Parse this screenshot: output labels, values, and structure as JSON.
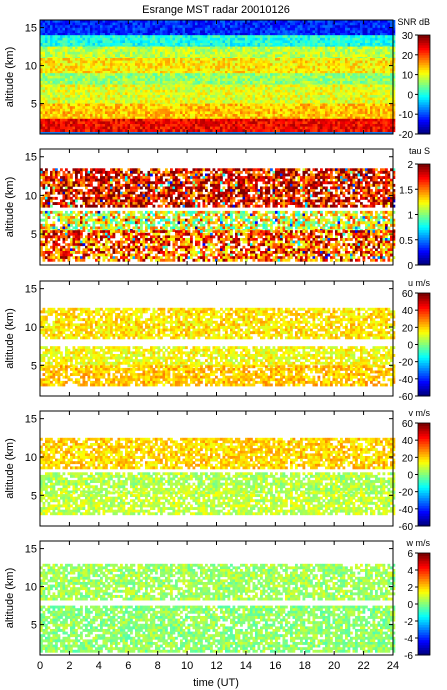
{
  "chart_data": {
    "type": "heatmap",
    "title": "Esrange MST radar 20010126",
    "xlabel": "time (UT)",
    "xlim": [
      0,
      24
    ],
    "x_ticks": [
      "0",
      "2",
      "4",
      "6",
      "8",
      "10",
      "12",
      "14",
      "16",
      "18",
      "20",
      "22",
      "24"
    ],
    "panels": [
      {
        "id": "snr",
        "ylabel": "altitude (km)",
        "ylim": [
          1,
          16
        ],
        "y_ticks": [
          "5",
          "10",
          "15"
        ],
        "colorbar_label": "SNR dB",
        "clim": [
          -20,
          30
        ],
        "colorbar_ticks": [
          "-20",
          "-10",
          "0",
          "10",
          "20",
          "30"
        ],
        "layers": [
          {
            "alt": [
              14.0,
              16.0
            ],
            "value": -12
          },
          {
            "alt": [
              12.5,
              14.0
            ],
            "value": 0
          },
          {
            "alt": [
              11.0,
              12.5
            ],
            "value": 8
          },
          {
            "alt": [
              9.0,
              11.0
            ],
            "value": 12
          },
          {
            "alt": [
              7.5,
              9.0
            ],
            "value": 6
          },
          {
            "alt": [
              5.0,
              7.5
            ],
            "value": 10
          },
          {
            "alt": [
              3.0,
              5.0
            ],
            "value": 14
          },
          {
            "alt": [
              1.5,
              3.0
            ],
            "value": 24
          }
        ]
      },
      {
        "id": "tau",
        "ylabel": "altitude (km)",
        "ylim": [
          1,
          16
        ],
        "y_ticks": [
          "5",
          "10",
          "15"
        ],
        "colorbar_label": "tau S",
        "clim": [
          0,
          2
        ],
        "colorbar_ticks": [
          "0",
          "0.5",
          "1",
          "1.5",
          "2"
        ],
        "layers": [
          {
            "alt": [
              8.5,
              13.5
            ],
            "value": 1.8
          },
          {
            "alt": [
              5.5,
              8.0
            ],
            "value": 1.2
          },
          {
            "alt": [
              1.5,
              5.5
            ],
            "value": 1.6
          }
        ]
      },
      {
        "id": "u",
        "ylabel": "altitude (km)",
        "ylim": [
          1,
          16
        ],
        "y_ticks": [
          "5",
          "10",
          "15"
        ],
        "colorbar_label": "u m/s",
        "clim": [
          -60,
          60
        ],
        "colorbar_ticks": [
          "-60",
          "-40",
          "-20",
          "0",
          "20",
          "40",
          "60"
        ],
        "layers": [
          {
            "alt": [
              8.5,
              12.5
            ],
            "value": 18
          },
          {
            "alt": [
              5.0,
              7.5
            ],
            "value": 14
          },
          {
            "alt": [
              2.5,
              5.0
            ],
            "value": 22
          }
        ]
      },
      {
        "id": "v",
        "ylabel": "altitude (km)",
        "ylim": [
          1,
          16
        ],
        "y_ticks": [
          "5",
          "10",
          "15"
        ],
        "colorbar_label": "v m/s",
        "clim": [
          -60,
          60
        ],
        "colorbar_ticks": [
          "-60",
          "-40",
          "-20",
          "0",
          "20",
          "40",
          "60"
        ],
        "layers": [
          {
            "alt": [
              8.5,
              12.5
            ],
            "value": 20
          },
          {
            "alt": [
              5.5,
              8.0
            ],
            "value": 6
          },
          {
            "alt": [
              2.5,
              5.5
            ],
            "value": 8
          }
        ]
      },
      {
        "id": "w",
        "ylabel": "altitude (km)",
        "ylim": [
          1,
          16
        ],
        "y_ticks": [
          "5",
          "10",
          "15"
        ],
        "colorbar_label": "w m/s",
        "clim": [
          -6,
          6
        ],
        "colorbar_ticks": [
          "-6",
          "-4",
          "-2",
          "0",
          "2",
          "4",
          "6"
        ],
        "layers": [
          {
            "alt": [
              8.5,
              13.0
            ],
            "value": 0.4
          },
          {
            "alt": [
              1.5,
              7.5
            ],
            "value": 0.2
          }
        ]
      }
    ]
  }
}
